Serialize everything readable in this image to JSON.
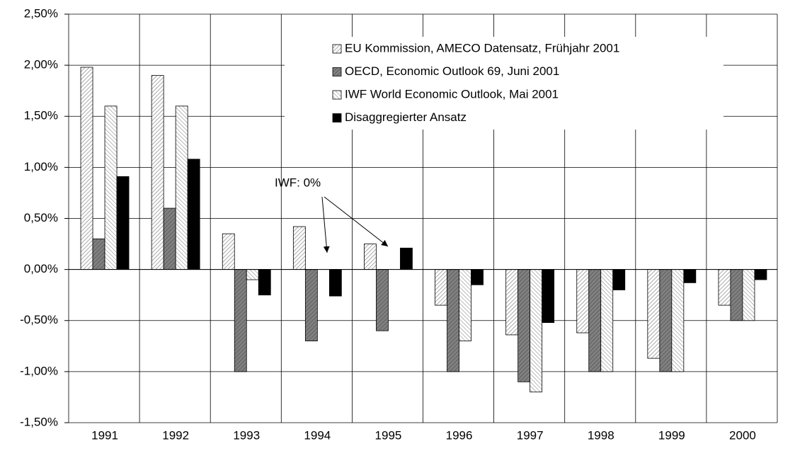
{
  "chart_data": {
    "type": "bar",
    "categories": [
      "1991",
      "1992",
      "1993",
      "1994",
      "1995",
      "1996",
      "1997",
      "1998",
      "1999",
      "2000"
    ],
    "series": [
      {
        "name": "EU Kommission, AMECO Datensatz, Frühjahr 2001",
        "color": "#8c8c8c",
        "hatch": "light-diagonal",
        "values": [
          1.98,
          1.9,
          0.35,
          0.42,
          0.25,
          -0.35,
          -0.64,
          -0.62,
          -0.87,
          -0.35
        ]
      },
      {
        "name": "OECD, Economic Outlook 69, Juni 2001",
        "color": "#808080",
        "hatch": "dark-diagonal",
        "values": [
          0.3,
          0.6,
          -1.0,
          -0.7,
          -0.6,
          -1.0,
          -1.1,
          -1.0,
          -1.0,
          -0.5
        ]
      },
      {
        "name": "IWF World Economic Outlook, Mai 2001",
        "color": "#8c8c8c",
        "hatch": "reverse-diagonal",
        "values": [
          1.6,
          1.6,
          -0.1,
          0,
          0,
          -0.7,
          -1.2,
          -1.0,
          -1.0,
          -0.5
        ]
      },
      {
        "name": "Disaggregierter Ansatz",
        "color": "#000000",
        "hatch": "solid",
        "values": [
          0.91,
          1.08,
          -0.25,
          -0.26,
          0.21,
          -0.15,
          -0.52,
          -0.2,
          -0.13,
          -0.1
        ]
      }
    ],
    "ylim": [
      -1.5,
      2.5
    ],
    "yticks": [
      {
        "value": -1.5,
        "label": "-1,50%"
      },
      {
        "value": -1,
        "label": "-1,00%"
      },
      {
        "value": -0.5,
        "label": "-0,50%"
      },
      {
        "value": 0,
        "label": "0,00%"
      },
      {
        "value": 0.5,
        "label": "0,50%"
      },
      {
        "value": 1,
        "label": "1,00%"
      },
      {
        "value": 1.5,
        "label": "1,50%"
      },
      {
        "value": 2,
        "label": "2,00%"
      },
      {
        "value": 2.5,
        "label": "2,50%"
      }
    ],
    "grid": true,
    "legend": "top",
    "annotation": "IWF: 0%"
  }
}
